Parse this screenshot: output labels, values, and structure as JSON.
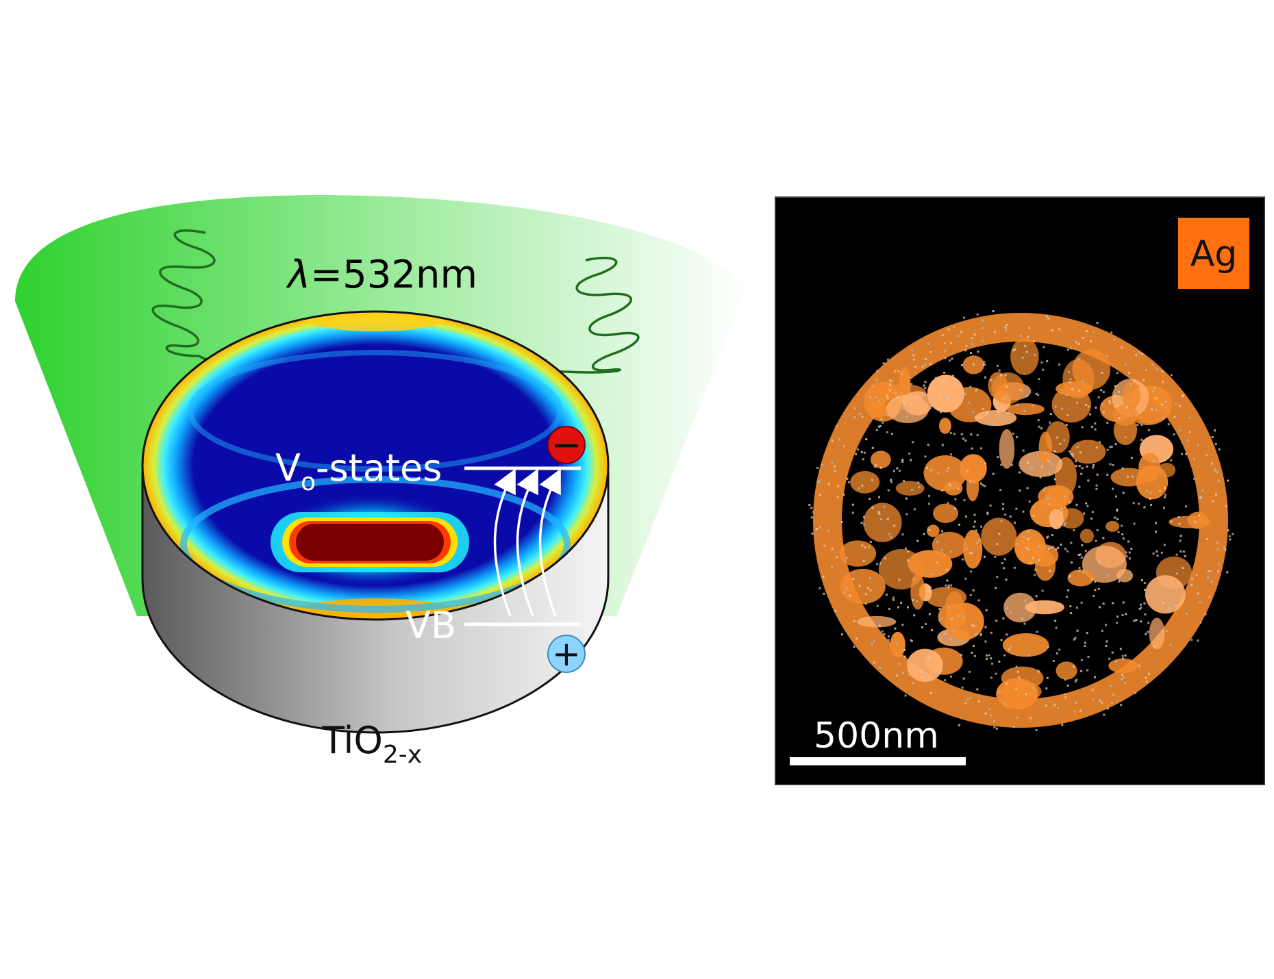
{
  "left_panel": {
    "wavelength_symbol": "λ",
    "wavelength_value": "=532nm",
    "vo_main": "V",
    "vo_sub": "o",
    "vo_rest": "-states",
    "vb_label": "VB",
    "electron_symbol": "−",
    "hole_symbol": "+",
    "material_main": "TiO",
    "material_sub": "2-x"
  },
  "right_panel": {
    "element_badge": "Ag",
    "scale_bar_label": "500nm"
  },
  "colors": {
    "light_green": "#43d743",
    "wave_green": "#1e6e1e",
    "disk_blue": "#0a0aa8",
    "hot_core": "#7a0000",
    "electron_red": "#e01010",
    "hole_blue": "#8fd3ff",
    "silver_orange": "#f28a2e",
    "badge_orange": "#ff7010"
  }
}
